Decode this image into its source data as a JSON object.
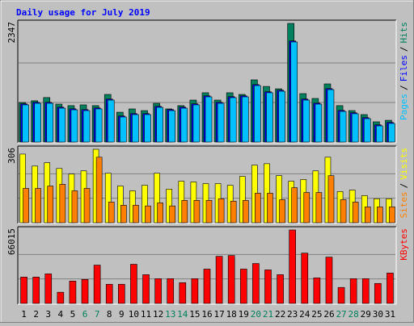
{
  "title": "Daily usage for July 2019",
  "legend_separator": "/",
  "chart_data": [
    {
      "type": "bar",
      "categories": [
        "1",
        "2",
        "3",
        "4",
        "5",
        "6",
        "7",
        "8",
        "9",
        "10",
        "11",
        "12",
        "13",
        "14",
        "15",
        "16",
        "17",
        "18",
        "19",
        "20",
        "21",
        "22",
        "23",
        "24",
        "25",
        "26",
        "27",
        "28",
        "29",
        "30",
        "31"
      ],
      "ylim": [
        0,
        2347
      ],
      "yticks": [
        2347
      ],
      "series": [
        {
          "name": "Hits",
          "color": "#00805c",
          "values": [
            782,
            816,
            880,
            750,
            720,
            735,
            720,
            942,
            590,
            655,
            622,
            766,
            655,
            720,
            830,
            975,
            830,
            975,
            942,
            1230,
            1100,
            1053,
            2347,
            958,
            862,
            1150,
            720,
            622,
            543,
            400,
            430
          ]
        },
        {
          "name": "Files",
          "color": "#0000ff",
          "values": [
            755,
            786,
            786,
            690,
            658,
            642,
            675,
            850,
            515,
            563,
            563,
            706,
            642,
            690,
            755,
            914,
            786,
            898,
            914,
            1137,
            995,
            1025,
            2000,
            850,
            770,
            1057,
            626,
            580,
            483,
            340,
            388
          ]
        },
        {
          "name": "Pages",
          "color": "#00c0ff",
          "values": [
            735,
            766,
            766,
            670,
            638,
            622,
            655,
            830,
            495,
            543,
            543,
            686,
            622,
            670,
            735,
            894,
            766,
            878,
            894,
            1117,
            975,
            1005,
            1980,
            830,
            750,
            1037,
            606,
            560,
            463,
            320,
            368
          ]
        }
      ]
    },
    {
      "type": "bar",
      "categories": [
        "1",
        "2",
        "3",
        "4",
        "5",
        "6",
        "7",
        "8",
        "9",
        "10",
        "11",
        "12",
        "13",
        "14",
        "15",
        "16",
        "17",
        "18",
        "19",
        "20",
        "21",
        "22",
        "23",
        "24",
        "25",
        "26",
        "27",
        "28",
        "29",
        "30",
        "31"
      ],
      "ylim": [
        0,
        306
      ],
      "yticks": [
        306
      ],
      "series": [
        {
          "name": "Visits",
          "color": "#ffff00",
          "values": [
            286,
            236,
            250,
            226,
            203,
            216,
            306,
            206,
            153,
            133,
            156,
            206,
            140,
            173,
            170,
            163,
            163,
            156,
            193,
            240,
            246,
            196,
            173,
            180,
            216,
            273,
            130,
            136,
            113,
            100,
            100
          ]
        },
        {
          "name": "Sites",
          "color": "#ff8000",
          "values": [
            143,
            143,
            153,
            160,
            133,
            143,
            273,
            86,
            73,
            73,
            70,
            83,
            70,
            93,
            93,
            93,
            100,
            90,
            93,
            123,
            123,
            96,
            146,
            126,
            126,
            196,
            96,
            86,
            66,
            66,
            66
          ]
        }
      ]
    },
    {
      "type": "bar",
      "categories": [
        "1",
        "2",
        "3",
        "4",
        "5",
        "6",
        "7",
        "8",
        "9",
        "10",
        "11",
        "12",
        "13",
        "14",
        "15",
        "16",
        "17",
        "18",
        "19",
        "20",
        "21",
        "22",
        "23",
        "24",
        "25",
        "26",
        "27",
        "28",
        "29",
        "30",
        "31"
      ],
      "category_colors": [
        "#000000",
        "#000000",
        "#000000",
        "#000000",
        "#000000",
        "#00805c",
        "#00805c",
        "#000000",
        "#000000",
        "#000000",
        "#000000",
        "#000000",
        "#00805c",
        "#00805c",
        "#000000",
        "#000000",
        "#000000",
        "#000000",
        "#000000",
        "#00805c",
        "#00805c",
        "#000000",
        "#000000",
        "#000000",
        "#000000",
        "#000000",
        "#00805c",
        "#00805c",
        "#000000",
        "#000000",
        "#000000"
      ],
      "ylim": [
        0,
        66015
      ],
      "yticks": [
        66015
      ],
      "series": [
        {
          "name": "KBytes",
          "color": "#ff0000",
          "values": [
            23681,
            23681,
            26552,
            10046,
            20090,
            21526,
            34444,
            17222,
            17222,
            35162,
            25834,
            22244,
            22244,
            18657,
            22244,
            30856,
            42338,
            43055,
            30856,
            35880,
            30139,
            25834,
            66015,
            45208,
            22962,
            41620,
            14352,
            22244,
            22244,
            17940,
            27270
          ]
        }
      ]
    }
  ]
}
